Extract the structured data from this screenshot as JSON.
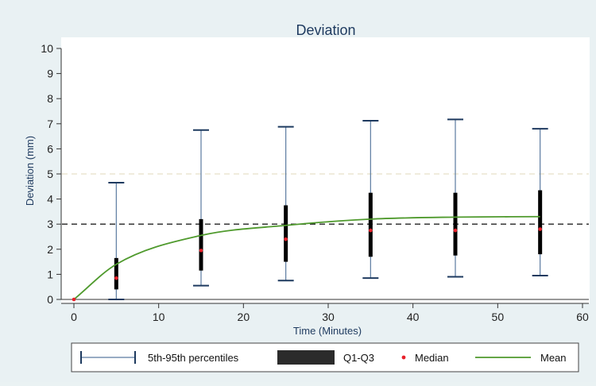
{
  "chart_data": {
    "type": "box",
    "title": "Deviation",
    "xlabel": "Time (Minutes)",
    "ylabel": "Deviation (mm)",
    "xlim": [
      0,
      60
    ],
    "ylim": [
      0,
      10
    ],
    "x_ticks": [
      0,
      10,
      20,
      30,
      40,
      50,
      60
    ],
    "y_ticks": [
      0,
      1,
      2,
      3,
      4,
      5,
      6,
      7,
      8,
      9,
      10
    ],
    "grid": false,
    "legend_position": "bottom",
    "reference_lines": [
      {
        "y": 3,
        "style": "dashed",
        "color": "#222222"
      },
      {
        "y": 5,
        "style": "dashed",
        "color": "#e6e0c8"
      }
    ],
    "series": [
      {
        "name": "5th-95th percentiles",
        "kind": "whisker",
        "color": "#5a7aa0",
        "x": [
          5,
          15,
          25,
          35,
          45,
          55
        ],
        "low": [
          0.0,
          0.55,
          0.75,
          0.85,
          0.9,
          0.95
        ],
        "high": [
          4.65,
          6.75,
          6.88,
          7.12,
          7.17,
          6.8
        ]
      },
      {
        "name": "Q1-Q3",
        "kind": "iqr",
        "color": "#000000",
        "x": [
          5,
          15,
          25,
          35,
          45,
          55
        ],
        "q1": [
          0.4,
          1.15,
          1.5,
          1.7,
          1.75,
          1.8
        ],
        "q3": [
          1.65,
          3.2,
          3.75,
          4.25,
          4.25,
          4.35
        ]
      },
      {
        "name": "Median",
        "kind": "point",
        "color": "#e8202a",
        "x": [
          0,
          5,
          15,
          25,
          35,
          45,
          55
        ],
        "y": [
          0.0,
          0.85,
          1.95,
          2.4,
          2.75,
          2.75,
          2.8
        ]
      },
      {
        "name": "Mean",
        "kind": "line",
        "color": "#4f9a2d",
        "x": [
          0,
          5,
          15,
          25,
          35,
          45,
          55
        ],
        "y": [
          0.0,
          1.4,
          2.55,
          2.95,
          3.2,
          3.28,
          3.3
        ]
      }
    ]
  }
}
